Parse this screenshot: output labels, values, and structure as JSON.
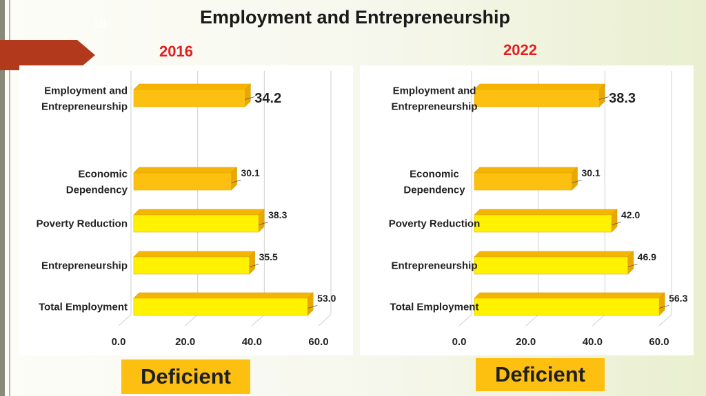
{
  "slide": {
    "number": "18",
    "title": "Employment and Entrepreneurship",
    "deficient_label": "Deficient"
  },
  "colors": {
    "accent_red": "#e41e1e",
    "bar_light": "#fff200",
    "bar_dark": "#fdc010",
    "badge": "#fdc010"
  },
  "chart_data": [
    {
      "type": "bar",
      "orientation": "horizontal",
      "title": "2016",
      "categories": [
        "Employment and Entrepreneurship",
        "Economic Dependency",
        "Poverty Reduction",
        "Entrepreneurship",
        "Total Employment"
      ],
      "values": [
        34.2,
        30.1,
        38.3,
        35.5,
        53.0
      ],
      "value_labels": [
        "34.2",
        "30.1",
        "38.3",
        "35.5",
        "53.0"
      ],
      "xlim": [
        0,
        60
      ],
      "xticks": [
        "0.0",
        "20.0",
        "40.0",
        "60.0"
      ],
      "grid": true
    },
    {
      "type": "bar",
      "orientation": "horizontal",
      "title": "2022",
      "categories": [
        "Employment and Entrepreneurship",
        "Economic Dependency",
        "Poverty Reduction",
        "Entrepreneurship",
        "Total Employment"
      ],
      "values": [
        38.3,
        30.1,
        42.0,
        46.9,
        56.3
      ],
      "value_labels": [
        "38.3",
        "30.1",
        "42.0",
        "46.9",
        "56.3"
      ],
      "xlim": [
        0,
        60
      ],
      "xticks": [
        "0.0",
        "20.0",
        "40.0",
        "60.0"
      ],
      "grid": true
    }
  ]
}
